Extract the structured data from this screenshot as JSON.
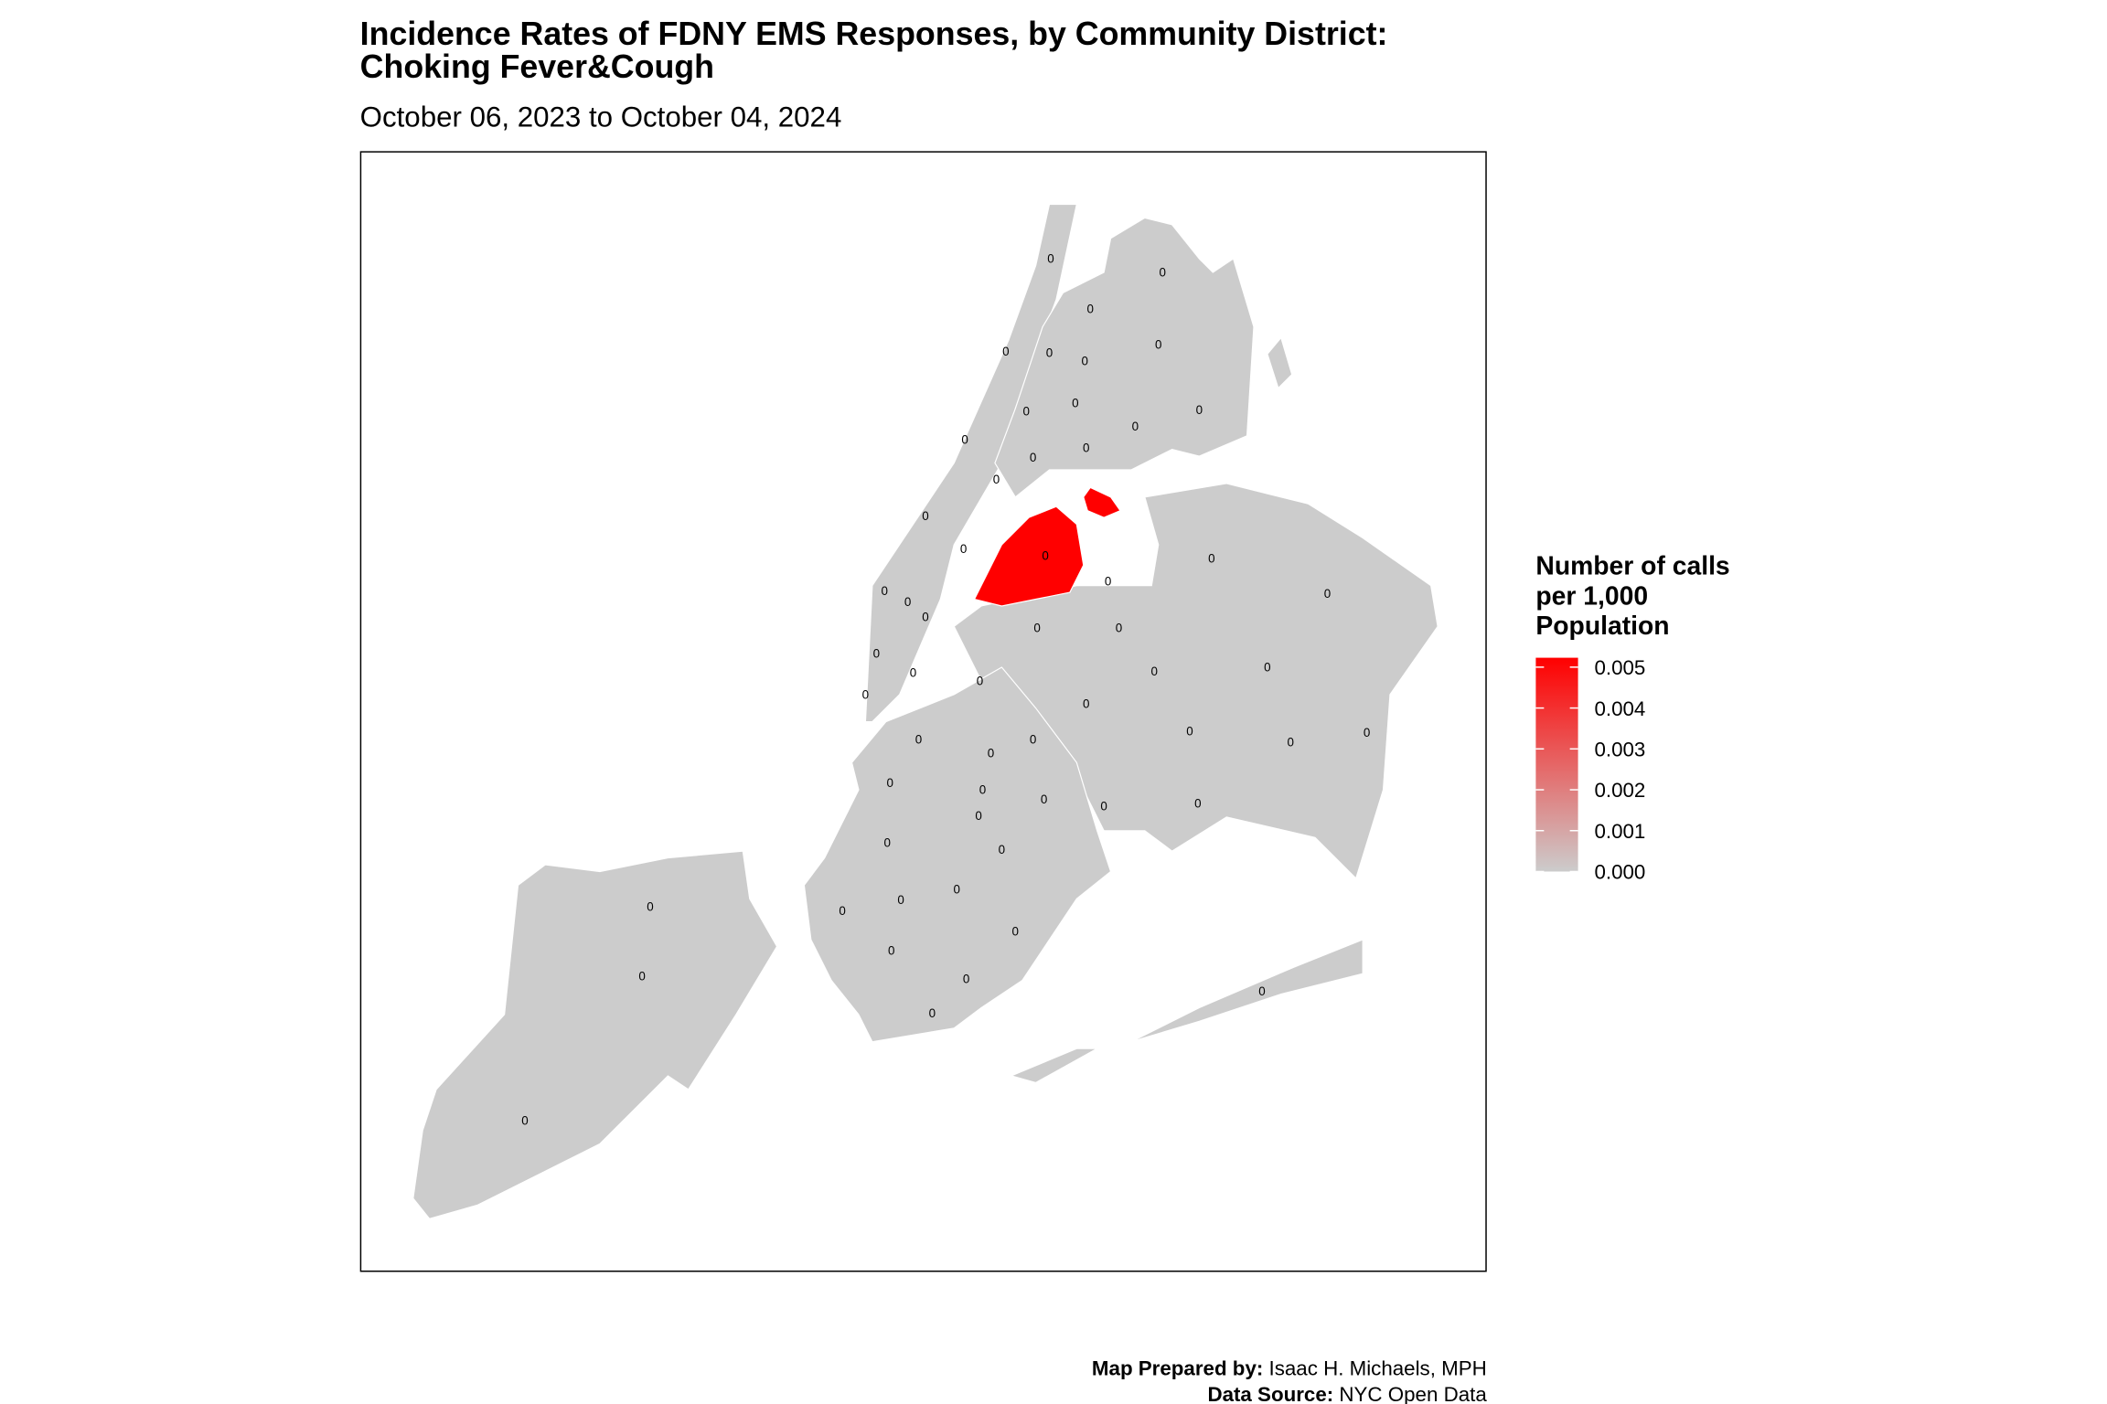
{
  "title_lines": [
    "Incidence Rates of FDNY EMS Responses, by Community District:",
    "Choking Fever&Cough"
  ],
  "subtitle": "October 06, 2023 to October 04, 2024",
  "legend": {
    "title_lines": [
      "Number of calls",
      "per 1,000",
      "Population"
    ],
    "low_color": "#cccccc",
    "high_color": "#ff0000",
    "range": [
      0,
      0.00523
    ],
    "ticks": [
      {
        "value": 0,
        "label": "0.000"
      },
      {
        "value": 0.001,
        "label": "0.001"
      },
      {
        "value": 0.002,
        "label": "0.002"
      },
      {
        "value": 0.003,
        "label": "0.003"
      },
      {
        "value": 0.004,
        "label": "0.004"
      },
      {
        "value": 0.005,
        "label": "0.005"
      }
    ]
  },
  "districts": [
    {
      "label": "0"
    },
    {
      "label": "0"
    },
    {
      "label": "0"
    },
    {
      "label": "0"
    },
    {
      "label": "0"
    },
    {
      "label": "0"
    },
    {
      "label": "0"
    },
    {
      "label": "0"
    },
    {
      "label": "0"
    },
    {
      "label": "0"
    },
    {
      "label": "0"
    },
    {
      "label": "0"
    },
    {
      "label": "0"
    },
    {
      "label": "0"
    },
    {
      "label": "0"
    },
    {
      "label": "0"
    },
    {
      "label": "0"
    },
    {
      "label": "0"
    },
    {
      "label": "0"
    },
    {
      "label": "0"
    },
    {
      "label": "0"
    },
    {
      "label": "0"
    },
    {
      "label": "0"
    },
    {
      "label": "0"
    },
    {
      "label": "0"
    },
    {
      "label": "0"
    },
    {
      "label": "0"
    },
    {
      "label": "0"
    },
    {
      "label": "0"
    },
    {
      "label": "0"
    },
    {
      "label": "0"
    },
    {
      "label": "0"
    },
    {
      "label": "0"
    },
    {
      "label": "0"
    },
    {
      "label": "0"
    },
    {
      "label": "0"
    },
    {
      "label": "0"
    },
    {
      "label": "0"
    },
    {
      "label": "0"
    },
    {
      "label": "0"
    },
    {
      "label": "0"
    },
    {
      "label": "0"
    },
    {
      "label": "0"
    },
    {
      "label": "0"
    },
    {
      "label": "0"
    },
    {
      "label": "0"
    },
    {
      "label": "0"
    },
    {
      "label": "0"
    },
    {
      "label": "0"
    },
    {
      "label": "0"
    },
    {
      "label": "0"
    },
    {
      "label": "0"
    },
    {
      "label": "0"
    },
    {
      "label": "0"
    },
    {
      "label": "0"
    },
    {
      "label": "0"
    },
    {
      "label": "0"
    },
    {
      "label": "0"
    }
  ],
  "credits": {
    "prepared_label": "Map Prepared by:",
    "prepared_by": "Isaac H. Michaels, MPH",
    "source_label": "Data Source:",
    "source": "NYC Open Data"
  }
}
